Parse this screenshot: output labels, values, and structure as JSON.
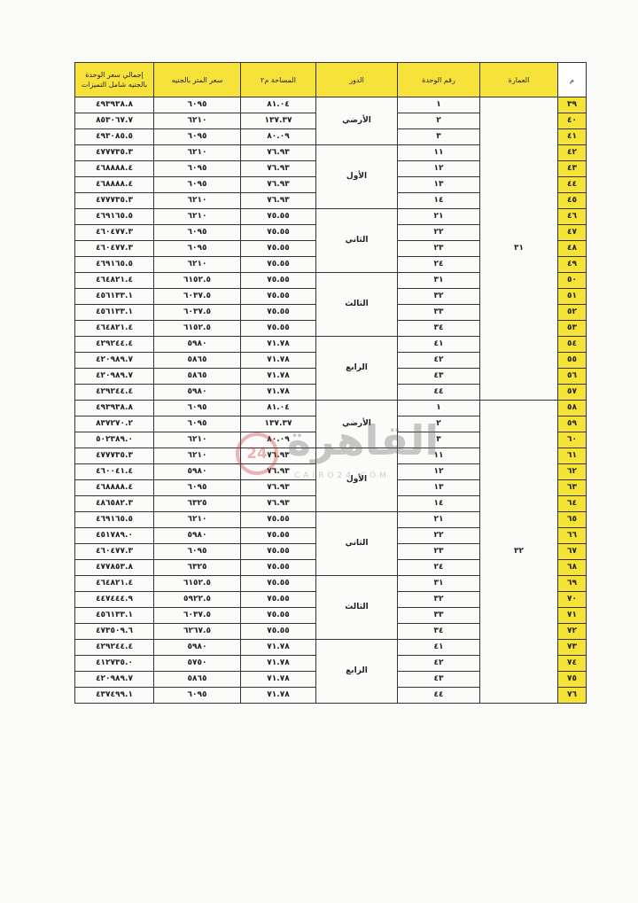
{
  "headers": {
    "m": "م",
    "building": "العمارة",
    "unit": "رقم الوحدة",
    "floor": "الدور",
    "area": "المساحة م٢",
    "price": "سعر المتر بالجنيه",
    "total": "إجمالي سعر الوحدة بالجنيه شامل التميزات"
  },
  "colors": {
    "header_yellow": "#f7e23a",
    "index_yellow": "#f4e234",
    "building_number": "#c94a6c"
  },
  "watermark": {
    "logo": "القاهرة",
    "badge": "24",
    "site": "CAIRO24.COM"
  },
  "buildings": [
    {
      "number": "٣١",
      "floors": [
        {
          "name": "الأرضي",
          "units": [
            {
              "m": "٣٩",
              "unit": "١",
              "area": "٨١.٠٤",
              "price": "٦٠٩٥",
              "total": "٤٩٣٩٣٨.٨"
            },
            {
              "m": "٤٠",
              "unit": "٢",
              "area": "١٣٧.٣٧",
              "price": "٦٢١٠",
              "total": "٨٥٣٠٦٧.٧"
            },
            {
              "m": "٤١",
              "unit": "٣",
              "area": "٨٠.٠٩",
              "price": "٦٠٩٥",
              "total": "٤٩٣٠٨٥.٥"
            }
          ]
        },
        {
          "name": "الأول",
          "units": [
            {
              "m": "٤٢",
              "unit": "١١",
              "area": "٧٦.٩٣",
              "price": "٦٢١٠",
              "total": "٤٧٧٧٣٥.٣"
            },
            {
              "m": "٤٣",
              "unit": "١٢",
              "area": "٧٦.٩٣",
              "price": "٦٠٩٥",
              "total": "٤٦٨٨٨٨.٤"
            },
            {
              "m": "٤٤",
              "unit": "١٣",
              "area": "٧٦.٩٣",
              "price": "٦٠٩٥",
              "total": "٤٦٨٨٨٨.٤"
            },
            {
              "m": "٤٥",
              "unit": "١٤",
              "area": "٧٦.٩٣",
              "price": "٦٢١٠",
              "total": "٤٧٧٧٣٥.٣"
            }
          ]
        },
        {
          "name": "الثاني",
          "units": [
            {
              "m": "٤٦",
              "unit": "٢١",
              "area": "٧٥.٥٥",
              "price": "٦٢١٠",
              "total": "٤٦٩١٦٥.٥"
            },
            {
              "m": "٤٧",
              "unit": "٢٢",
              "area": "٧٥.٥٥",
              "price": "٦٠٩٥",
              "total": "٤٦٠٤٧٧.٣"
            },
            {
              "m": "٤٨",
              "unit": "٢٣",
              "area": "٧٥.٥٥",
              "price": "٦٠٩٥",
              "total": "٤٦٠٤٧٧.٣"
            },
            {
              "m": "٤٩",
              "unit": "٢٤",
              "area": "٧٥.٥٥",
              "price": "٦٢١٠",
              "total": "٤٦٩١٦٥.٥"
            }
          ]
        },
        {
          "name": "الثالث",
          "units": [
            {
              "m": "٥٠",
              "unit": "٣١",
              "area": "٧٥.٥٥",
              "price": "٦١٥٢.٥",
              "total": "٤٦٤٨٢١.٤"
            },
            {
              "m": "٥١",
              "unit": "٣٢",
              "area": "٧٥.٥٥",
              "price": "٦٠٣٧.٥",
              "total": "٤٥٦١٣٣.١"
            },
            {
              "m": "٥٢",
              "unit": "٣٣",
              "area": "٧٥.٥٥",
              "price": "٦٠٣٧.٥",
              "total": "٤٥٦١٣٣.١"
            },
            {
              "m": "٥٣",
              "unit": "٣٤",
              "area": "٧٥.٥٥",
              "price": "٦١٥٢.٥",
              "total": "٤٦٤٨٢١.٤"
            }
          ]
        },
        {
          "name": "الرابع",
          "units": [
            {
              "m": "٥٤",
              "unit": "٤١",
              "area": "٧١.٧٨",
              "price": "٥٩٨٠",
              "total": "٤٢٩٢٤٤.٤"
            },
            {
              "m": "٥٥",
              "unit": "٤٢",
              "area": "٧١.٧٨",
              "price": "٥٨٦٥",
              "total": "٤٢٠٩٨٩.٧"
            },
            {
              "m": "٥٦",
              "unit": "٤٣",
              "area": "٧١.٧٨",
              "price": "٥٨٦٥",
              "total": "٤٢٠٩٨٩.٧"
            },
            {
              "m": "٥٧",
              "unit": "٤٤",
              "area": "٧١.٧٨",
              "price": "٥٩٨٠",
              "total": "٤٢٩٢٤٤.٤"
            }
          ]
        }
      ]
    },
    {
      "number": "٣٢",
      "floors": [
        {
          "name": "الأرضي",
          "units": [
            {
              "m": "٥٨",
              "unit": "١",
              "area": "٨١.٠٤",
              "price": "٦٠٩٥",
              "total": "٤٩٣٩٣٨.٨"
            },
            {
              "m": "٥٩",
              "unit": "٢",
              "area": "١٣٧.٣٧",
              "price": "٦٠٩٥",
              "total": "٨٣٧٢٧٠.٢"
            },
            {
              "m": "٦٠",
              "unit": "٣",
              "area": "٨٠.٠٩",
              "price": "٦٢١٠",
              "total": "٥٠٢٣٨٩.٠"
            }
          ]
        },
        {
          "name": "الأول",
          "units": [
            {
              "m": "٦١",
              "unit": "١١",
              "area": "٧٦.٩٣",
              "price": "٦٢١٠",
              "total": "٤٧٧٧٣٥.٣"
            },
            {
              "m": "٦٢",
              "unit": "١٢",
              "area": "٧٦.٩٣",
              "price": "٥٩٨٠",
              "total": "٤٦٠٠٤١.٤"
            },
            {
              "m": "٦٣",
              "unit": "١٣",
              "area": "٧٦.٩٣",
              "price": "٦٠٩٥",
              "total": "٤٦٨٨٨٨.٤"
            },
            {
              "m": "٦٤",
              "unit": "١٤",
              "area": "٧٦.٩٣",
              "price": "٦٣٢٥",
              "total": "٤٨٦٥٨٢.٣"
            }
          ]
        },
        {
          "name": "الثاني",
          "units": [
            {
              "m": "٦٥",
              "unit": "٢١",
              "area": "٧٥.٥٥",
              "price": "٦٢١٠",
              "total": "٤٦٩١٦٥.٥"
            },
            {
              "m": "٦٦",
              "unit": "٢٢",
              "area": "٧٥.٥٥",
              "price": "٥٩٨٠",
              "total": "٤٥١٧٨٩.٠"
            },
            {
              "m": "٦٧",
              "unit": "٢٣",
              "area": "٧٥.٥٥",
              "price": "٦٠٩٥",
              "total": "٤٦٠٤٧٧.٣"
            },
            {
              "m": "٦٨",
              "unit": "٢٤",
              "area": "٧٥.٥٥",
              "price": "٦٣٢٥",
              "total": "٤٧٧٨٥٣.٨"
            }
          ]
        },
        {
          "name": "الثالث",
          "units": [
            {
              "m": "٦٩",
              "unit": "٣١",
              "area": "٧٥.٥٥",
              "price": "٦١٥٢.٥",
              "total": "٤٦٤٨٢١.٤"
            },
            {
              "m": "٧٠",
              "unit": "٣٢",
              "area": "٧٥.٥٥",
              "price": "٥٩٢٢.٥",
              "total": "٤٤٧٤٤٤.٩"
            },
            {
              "m": "٧١",
              "unit": "٣٣",
              "area": "٧٥.٥٥",
              "price": "٦٠٣٧.٥",
              "total": "٤٥٦١٣٣.١"
            },
            {
              "m": "٧٢",
              "unit": "٣٤",
              "area": "٧٥.٥٥",
              "price": "٦٢٦٧.٥",
              "total": "٤٧٣٥٠٩.٦"
            }
          ]
        },
        {
          "name": "الرابع",
          "units": [
            {
              "m": "٧٣",
              "unit": "٤١",
              "area": "٧١.٧٨",
              "price": "٥٩٨٠",
              "total": "٤٢٩٢٤٤.٤"
            },
            {
              "m": "٧٤",
              "unit": "٤٢",
              "area": "٧١.٧٨",
              "price": "٥٧٥٠",
              "total": "٤١٢٧٣٥.٠"
            },
            {
              "m": "٧٥",
              "unit": "٤٣",
              "area": "٧١.٧٨",
              "price": "٥٨٦٥",
              "total": "٤٢٠٩٨٩.٧"
            },
            {
              "m": "٧٦",
              "unit": "٤٤",
              "area": "٧١.٧٨",
              "price": "٦٠٩٥",
              "total": "٤٣٧٤٩٩.١"
            }
          ]
        }
      ]
    }
  ]
}
